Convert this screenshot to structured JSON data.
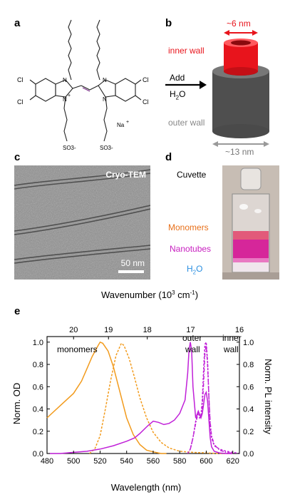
{
  "panels": {
    "a": {
      "letter": "a",
      "atoms": {
        "cl": "Cl",
        "n": "N",
        "n_plus": "N",
        "plus": "+",
        "so3": "SO3-",
        "na": "Na",
        "na_plus": "+"
      }
    },
    "b": {
      "letter": "b",
      "dimension_inner": "~6 nm",
      "inner_label": "inner wall",
      "arrow_label_1": "Add",
      "arrow_label_2": "H",
      "arrow_label_2_sub": "2",
      "arrow_label_2_end": "O",
      "outer_label": "outer wall",
      "dimension_outer": "~13 nm"
    },
    "c": {
      "letter": "c",
      "title": "Cryo-TEM",
      "scalebar": "50 nm"
    },
    "d": {
      "letter": "d",
      "cuvette": "Cuvette",
      "monomers": "Monomers",
      "nanotubes": "Nanotubes",
      "water_1": "H",
      "water_sub": "2",
      "water_2": "O"
    },
    "e": {
      "letter": "e"
    }
  },
  "colors": {
    "monomers": "#f0a030",
    "nanotubes": "#d020d0",
    "water": "#2a8fe0",
    "inner": "#e8141c",
    "outer": "#555555",
    "od": "#f29b1d",
    "pl": "#c020d8"
  },
  "chart_data": {
    "type": "line",
    "xlabel": "Wavelength (nm)",
    "top_label": "Wavenumber (10",
    "top_label_sup": "3",
    "top_label_mid": " cm",
    "top_label_sup2": "-1",
    "top_label_end": ")",
    "ylabel_left": "Norm. OD",
    "ylabel_right": "Norm. PL intensity",
    "xlim": [
      480,
      625
    ],
    "ylim": [
      0,
      1.05
    ],
    "x_ticks": [
      480,
      500,
      520,
      540,
      560,
      580,
      600,
      620
    ],
    "y_ticks": [
      0.0,
      0.2,
      0.4,
      0.6,
      0.8,
      1.0
    ],
    "y_tick_labels": [
      "0.0",
      "0.2",
      "0.4",
      "0.6",
      "0.8",
      "1.0"
    ],
    "top_ticks": [
      20,
      19,
      18,
      17,
      16
    ],
    "annotations": {
      "monomers": "monomers",
      "outer_1": "outer",
      "outer_2": "wall",
      "inner_1": "inner",
      "inner_2": "wall"
    },
    "series": [
      {
        "key": "monomer_abs",
        "style": "solid",
        "color": "od",
        "x": [
          480,
          490,
          500,
          506,
          510,
          514,
          518,
          520,
          522,
          526,
          530,
          535,
          540,
          545,
          550,
          555,
          560,
          566,
          570
        ],
        "y": [
          0.32,
          0.43,
          0.54,
          0.65,
          0.76,
          0.87,
          0.96,
          1.0,
          0.99,
          0.92,
          0.78,
          0.55,
          0.32,
          0.17,
          0.08,
          0.03,
          0.015,
          0.0,
          0.0
        ]
      },
      {
        "key": "monomer_pl",
        "style": "dash",
        "color": "od",
        "x": [
          512,
          516,
          520,
          524,
          528,
          532,
          536,
          538,
          542,
          546,
          550,
          555,
          560,
          566,
          572,
          580,
          590,
          600,
          610,
          620
        ],
        "y": [
          0.0,
          0.04,
          0.16,
          0.4,
          0.66,
          0.88,
          0.99,
          0.97,
          0.85,
          0.68,
          0.5,
          0.32,
          0.19,
          0.1,
          0.05,
          0.02,
          0.01,
          0.005,
          0.0,
          0.0
        ]
      },
      {
        "key": "tube_abs",
        "style": "solid",
        "color": "pl",
        "x": [
          482,
          490,
          500,
          510,
          520,
          530,
          540,
          546,
          550,
          556,
          560,
          564,
          568,
          572,
          576,
          580,
          584,
          586,
          587,
          588,
          589,
          590,
          592,
          594,
          596,
          597,
          598,
          599,
          600,
          601,
          602,
          603,
          604,
          606,
          610,
          615,
          620
        ],
        "y": [
          0.0,
          0.0,
          0.01,
          0.02,
          0.04,
          0.07,
          0.11,
          0.14,
          0.18,
          0.25,
          0.29,
          0.28,
          0.26,
          0.27,
          0.3,
          0.36,
          0.48,
          0.72,
          0.92,
          1.0,
          0.92,
          0.6,
          0.32,
          0.38,
          0.32,
          0.36,
          0.44,
          0.53,
          0.55,
          0.47,
          0.3,
          0.14,
          0.06,
          0.02,
          0.005,
          0.0,
          0.0
        ]
      },
      {
        "key": "tube_pl",
        "style": "dash",
        "color": "pl",
        "x": [
          586,
          588,
          590,
          592,
          594,
          595,
          596,
          597,
          598,
          599,
          600,
          601,
          602,
          603,
          604,
          606,
          610,
          615,
          620,
          625
        ],
        "y": [
          0.0,
          0.04,
          0.14,
          0.29,
          0.38,
          0.32,
          0.34,
          0.48,
          0.75,
          0.98,
          1.0,
          0.83,
          0.5,
          0.25,
          0.14,
          0.07,
          0.04,
          0.02,
          0.01,
          0.0
        ]
      },
      {
        "key": "tube_pl_solid",
        "style": "dashdot",
        "color": "pl",
        "x": [
          588,
          590,
          592,
          594,
          596,
          597,
          598,
          599,
          600,
          601,
          602,
          603,
          604,
          606,
          610,
          615,
          620
        ],
        "y": [
          0.04,
          0.14,
          0.27,
          0.37,
          0.32,
          0.42,
          0.63,
          0.9,
          0.97,
          0.8,
          0.5,
          0.28,
          0.16,
          0.08,
          0.03,
          0.01,
          0.0
        ]
      }
    ]
  }
}
